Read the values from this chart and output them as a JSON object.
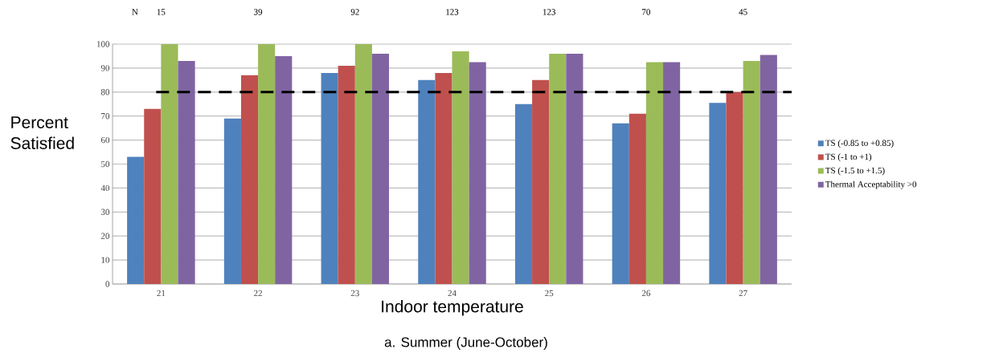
{
  "chart_data": {
    "type": "bar",
    "title": "a. Summer (June-October)",
    "xlabel": "Indoor temperature",
    "ylabel": "Percent Satisfied",
    "categories": [
      "21",
      "22",
      "23",
      "24",
      "25",
      "26",
      "27"
    ],
    "series": [
      {
        "name": "TS (-0.85 to +0.85)",
        "color": "#4f81bd",
        "values": [
          53,
          69,
          88,
          85,
          75,
          67,
          75.5
        ]
      },
      {
        "name": "TS (-1 to +1)",
        "color": "#c0504d",
        "values": [
          73,
          87,
          91,
          88,
          85,
          71,
          80
        ]
      },
      {
        "name": "TS (-1.5 to +1.5)",
        "color": "#9bbb59",
        "values": [
          100,
          100,
          100,
          97,
          96,
          92.5,
          93
        ]
      },
      {
        "name": "Thermal Acceptability >0",
        "color": "#8064a2",
        "values": [
          93,
          95,
          96,
          92.5,
          96,
          92.5,
          95.5
        ]
      }
    ],
    "annotations": [
      "N",
      "15",
      "39",
      "92",
      "123",
      "123",
      "70",
      "45"
    ],
    "ref_lines": [
      {
        "axis": "y",
        "value": 80,
        "color": "#000000",
        "line_style": "dashed"
      }
    ],
    "ylim": [
      0,
      100
    ],
    "yticks": [
      0,
      10,
      20,
      30,
      40,
      50,
      60,
      70,
      80,
      90,
      100
    ],
    "grid": "y",
    "legend": "right"
  }
}
